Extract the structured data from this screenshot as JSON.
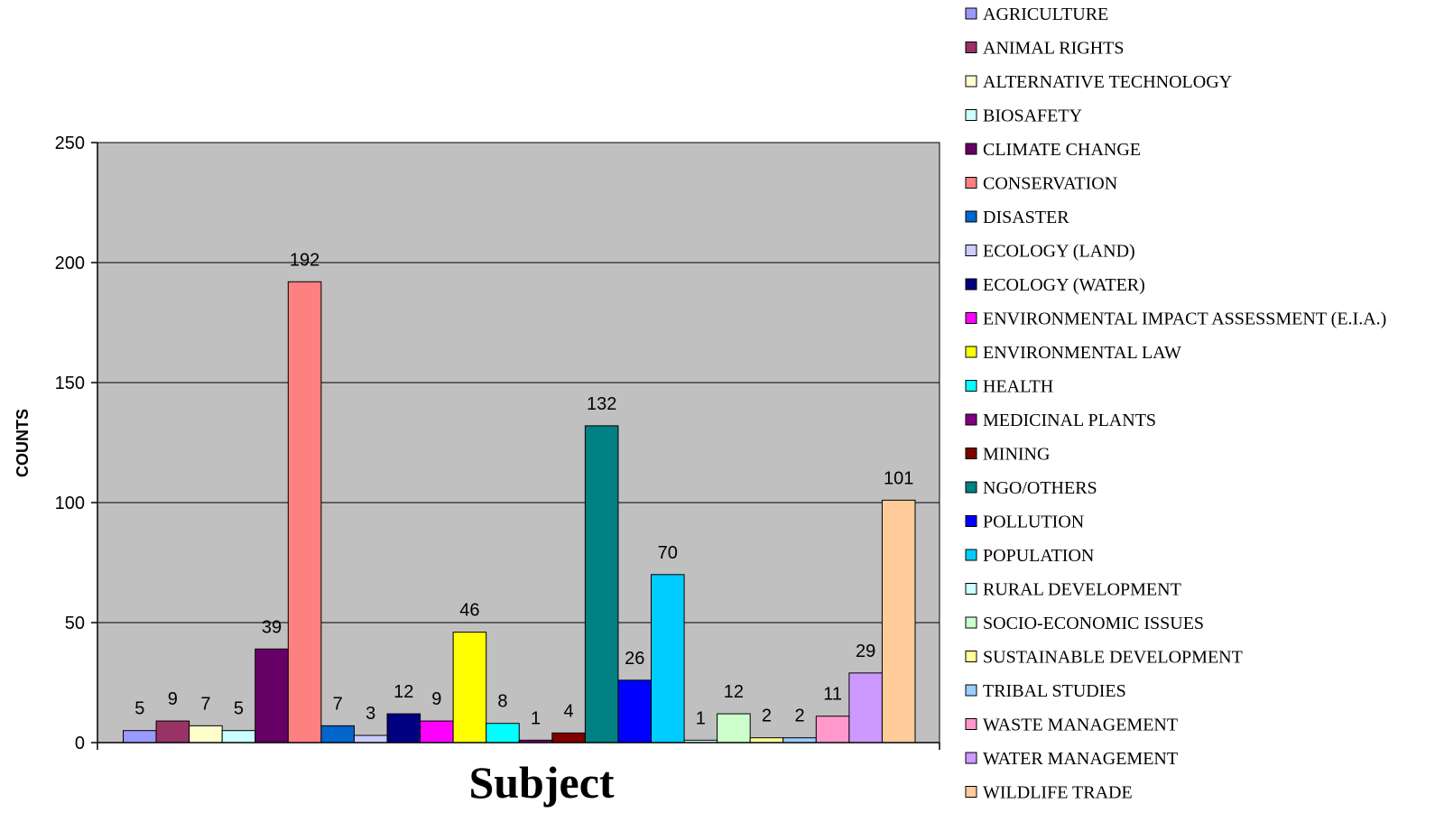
{
  "chart_data": {
    "type": "bar",
    "xlabel": "Subject",
    "ylabel": "COUNTS",
    "ylim": [
      0,
      250
    ],
    "yticks": [
      "0",
      "50",
      "100",
      "150",
      "200",
      "250"
    ],
    "grid": true,
    "legend_position": "right",
    "plot_background": "#C0C0C0",
    "series": [
      {
        "name": "AGRICULTURE",
        "value": 5,
        "label": "5",
        "color": "#9999FF"
      },
      {
        "name": "ANIMAL RIGHTS",
        "value": 9,
        "label": "9",
        "color": "#993366"
      },
      {
        "name": "ALTERNATIVE TECHNOLOGY",
        "value": 7,
        "label": "7",
        "color": "#FFFFCC"
      },
      {
        "name": "BIOSAFETY",
        "value": 5,
        "label": "5",
        "color": "#CCFFFF"
      },
      {
        "name": "CLIMATE CHANGE",
        "value": 39,
        "label": "39",
        "color": "#660066"
      },
      {
        "name": "CONSERVATION",
        "value": 192,
        "label": "192",
        "color": "#FF8080"
      },
      {
        "name": "DISASTER",
        "value": 7,
        "label": "7",
        "color": "#0066CC"
      },
      {
        "name": "ECOLOGY (LAND)",
        "value": 3,
        "label": "3",
        "color": "#CCCCFF"
      },
      {
        "name": "ECOLOGY (WATER)",
        "value": 12,
        "label": "12",
        "color": "#000080"
      },
      {
        "name": "ENVIRONMENTAL IMPACT ASSESSMENT (E.I.A.)",
        "value": 9,
        "label": "9",
        "color": "#FF00FF"
      },
      {
        "name": "ENVIRONMENTAL LAW",
        "value": 46,
        "label": "46",
        "color": "#FFFF00"
      },
      {
        "name": "HEALTH",
        "value": 8,
        "label": "8",
        "color": "#00FFFF"
      },
      {
        "name": "MEDICINAL PLANTS",
        "value": 1,
        "label": "1",
        "color": "#800080"
      },
      {
        "name": "MINING",
        "value": 4,
        "label": "4",
        "color": "#800000"
      },
      {
        "name": "NGO/OTHERS",
        "value": 132,
        "label": "132",
        "color": "#008080"
      },
      {
        "name": "POLLUTION",
        "value": 26,
        "label": "26",
        "color": "#0000FF"
      },
      {
        "name": "POPULATION",
        "value": 70,
        "label": "70",
        "color": "#00CCFF"
      },
      {
        "name": "RURAL DEVELOPMENT",
        "value": 1,
        "label": "1",
        "color": "#CCFFFF"
      },
      {
        "name": "SOCIO-ECONOMIC ISSUES",
        "value": 12,
        "label": "12",
        "color": "#CCFFCC"
      },
      {
        "name": "SUSTAINABLE DEVELOPMENT",
        "value": 2,
        "label": "2",
        "color": "#FFFF99"
      },
      {
        "name": "TRIBAL STUDIES",
        "value": 2,
        "label": "2",
        "color": "#99CCFF"
      },
      {
        "name": "WASTE MANAGEMENT",
        "value": 11,
        "label": "11",
        "color": "#FF99CC"
      },
      {
        "name": "WATER MANAGEMENT",
        "value": 29,
        "label": "29",
        "color": "#CC99FF"
      },
      {
        "name": "WILDLIFE TRADE",
        "value": 101,
        "label": "101",
        "color": "#FFCC99"
      }
    ]
  }
}
